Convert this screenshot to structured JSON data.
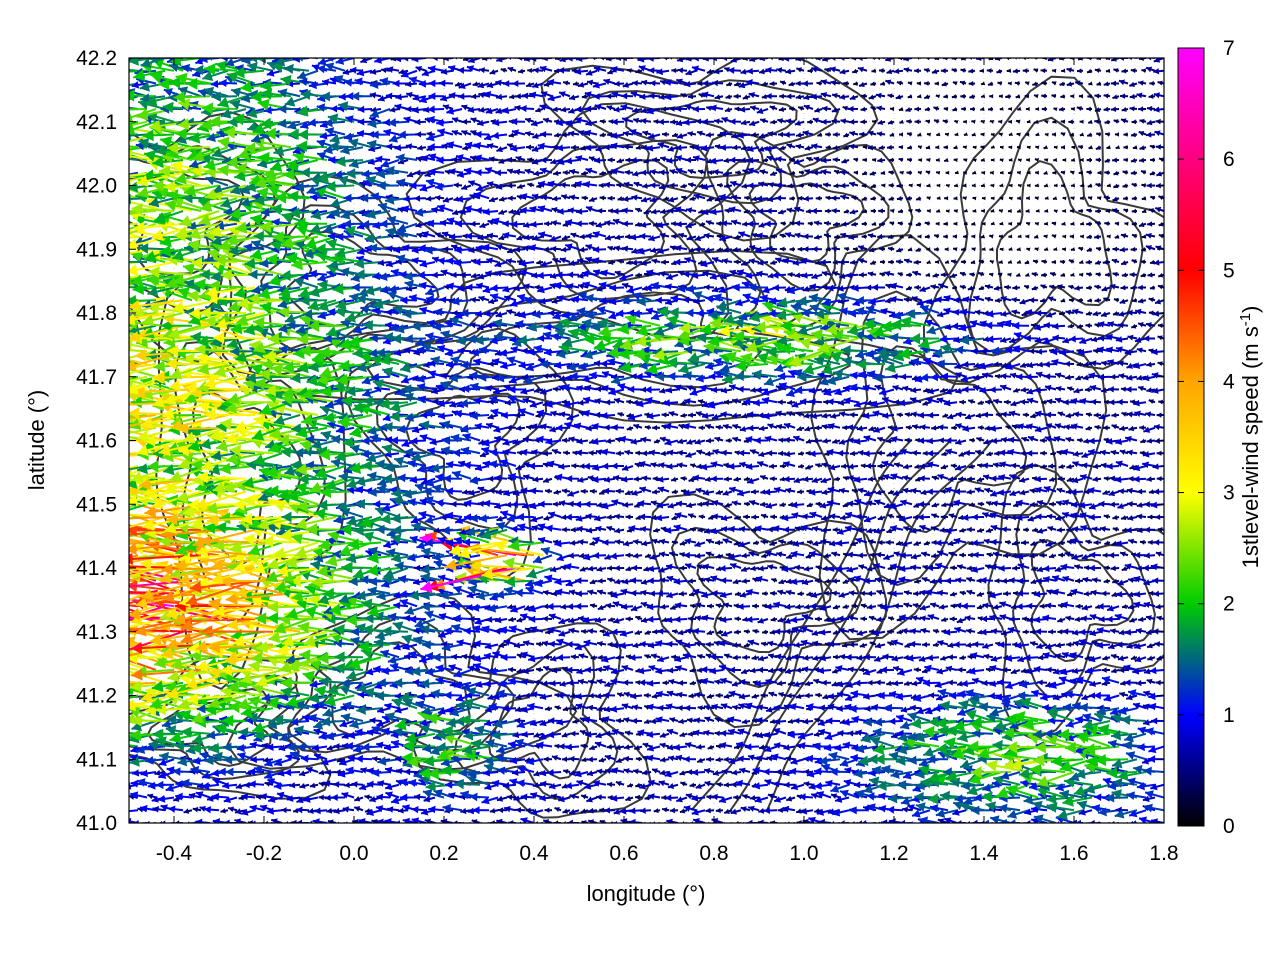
{
  "chart_data": {
    "type": "quiver",
    "xlabel": "longitude (°)",
    "ylabel": "latitude (°)",
    "xlim": [
      -0.5,
      1.8
    ],
    "ylim": [
      41.0,
      42.2
    ],
    "xticks": [
      -0.4,
      -0.2,
      0.0,
      0.2,
      0.4,
      0.6,
      0.8,
      1.0,
      1.2,
      1.4,
      1.6,
      1.8
    ],
    "xtick_labels": [
      "-0.4",
      "-0.2",
      "0.0",
      "0.2",
      "0.4",
      "0.6",
      "0.8",
      "1.0",
      "1.2",
      "1.4",
      "1.6",
      "1.8"
    ],
    "yticks": [
      41.0,
      41.1,
      41.2,
      41.3,
      41.4,
      41.5,
      41.6,
      41.7,
      41.8,
      41.9,
      42.0,
      42.1,
      42.2
    ],
    "ytick_labels": [
      "41.0",
      "41.1",
      "41.2",
      "41.3",
      "41.4",
      "41.5",
      "41.6",
      "41.7",
      "41.8",
      "41.9",
      "42.0",
      "42.1",
      "42.2"
    ],
    "grid": true,
    "colorbar": {
      "label_prefix": "1stlevel-wind speed (m s",
      "label_exponent": "-1",
      "label_suffix": ")",
      "range": [
        0,
        7
      ],
      "ticks": [
        0,
        1,
        2,
        3,
        4,
        5,
        6,
        7
      ],
      "tick_labels": [
        "0",
        "1",
        "2",
        "3",
        "4",
        "5",
        "6",
        "7"
      ],
      "colormap": [
        "#000000",
        "#0000ff",
        "#00cc00",
        "#ffff00",
        "#ffa500",
        "#ff0000",
        "#ff00ff"
      ]
    },
    "vector_field": {
      "lon_start": -0.5,
      "lon_step": 0.02,
      "n_lon": 116,
      "lat_start": 41.0,
      "lat_step": 0.02,
      "n_lat": 61,
      "direction": "mostly easterly (vectors pointing west)",
      "speed_range_m_s": [
        0,
        7
      ],
      "regions": [
        {
          "area": "western edge, lat 41.2-41.5, lon -0.5 to 0.0",
          "speed_m_s": 4.8
        },
        {
          "area": "west, lat 41.5-41.8, lon -0.5 to 0.1",
          "speed_m_s": 3.0
        },
        {
          "area": "north-west, lat 41.8-42.2, lon -0.5 to 0.0",
          "speed_m_s": 2.5
        },
        {
          "area": "band lat 41.7-41.8, lon 0.55-1.4",
          "speed_m_s": 2.8
        },
        {
          "area": "central plain, lon 0.4-1.0",
          "speed_m_s": 1.0
        },
        {
          "area": "north-east, lat 41.8-42.2, lon 1.1-1.8",
          "speed_m_s": 0.4
        },
        {
          "area": "south-east, lat 41.0-41.2, lon 1.2-1.8",
          "speed_m_s": 2.1
        },
        {
          "area": "jet near lon 0.3-0.4, lat 41.4",
          "speed_m_s": 6.5
        }
      ]
    },
    "contours": "terrain elevation isolines drawn in dark grey, no labels"
  }
}
